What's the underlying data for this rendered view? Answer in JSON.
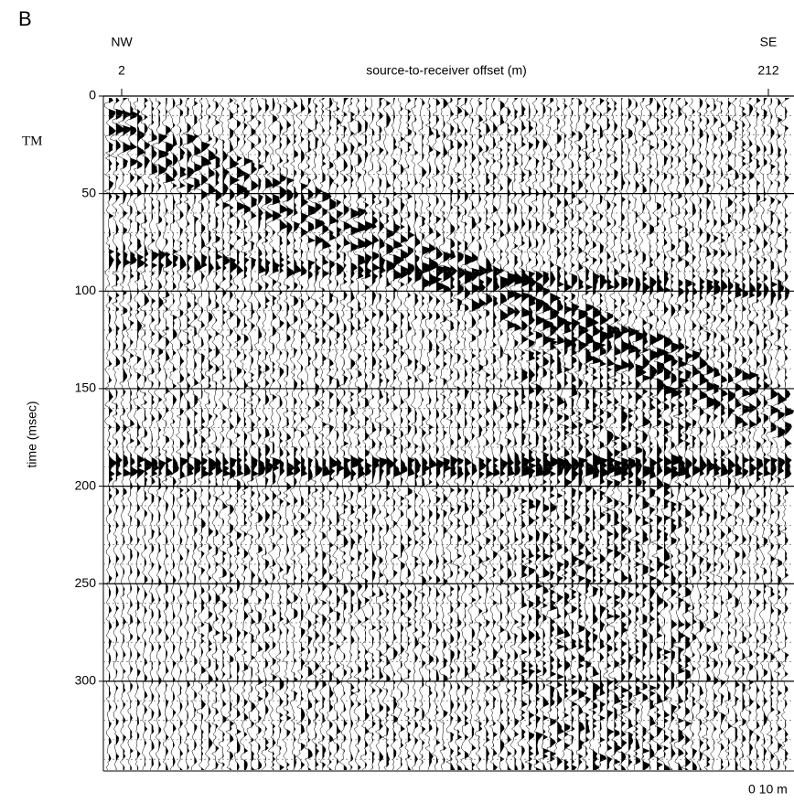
{
  "figure": {
    "panel_label": "B",
    "left_end": "NW",
    "right_end": "SE",
    "x_label": "source-to-receiver offset (m)",
    "y_label": "time (msec)",
    "side_note": "TM",
    "scale_bar": "0 10 m",
    "xlim": [
      2,
      212
    ],
    "xticks": [
      2,
      212
    ],
    "ylim": [
      0,
      346
    ],
    "yticks": [
      0,
      50,
      100,
      150,
      200,
      250,
      300
    ]
  }
}
